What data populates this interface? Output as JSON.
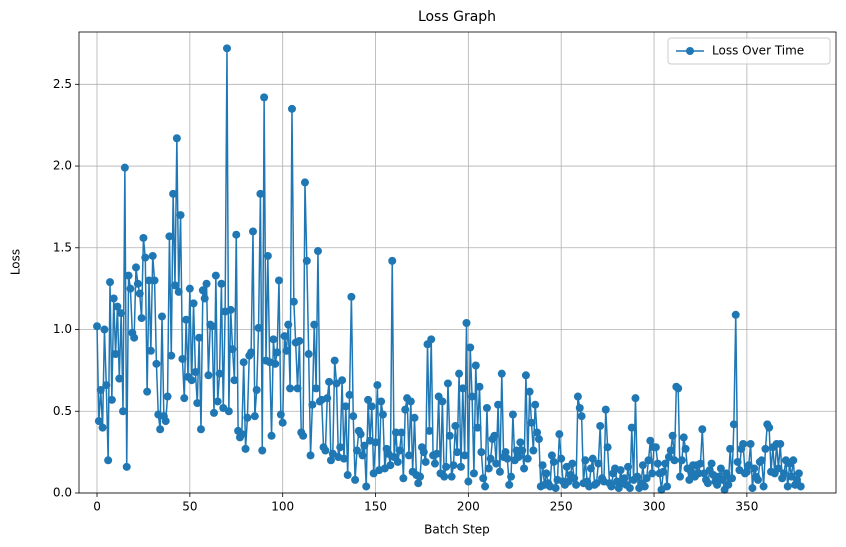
{
  "chart_data": {
    "type": "line",
    "title": "Loss Graph",
    "x_label": "Batch Step",
    "y_label": "Loss",
    "legend": "upper right",
    "grid": true,
    "xlim": [
      -9.7,
      398
    ],
    "ylim": [
      0,
      2.82
    ],
    "xticks": [
      0,
      50,
      100,
      150,
      200,
      250,
      300,
      350
    ],
    "yticks": [
      {
        "value": 0,
        "label": "0.0"
      },
      {
        "value": 0.5,
        "label": "0.5"
      },
      {
        "value": 1,
        "label": "1.0"
      },
      {
        "value": 1.5,
        "label": "1.5"
      },
      {
        "value": 2,
        "label": "2.0"
      },
      {
        "value": 2.5,
        "label": "2.5"
      }
    ],
    "x": [
      0,
      1,
      2,
      3,
      4,
      5,
      6,
      7,
      8,
      9,
      10,
      11,
      12,
      13,
      14,
      15,
      16,
      17,
      18,
      19,
      20,
      21,
      22,
      23,
      24,
      25,
      26,
      27,
      28,
      29,
      30,
      31,
      32,
      33,
      34,
      35,
      36,
      37,
      38,
      39,
      40,
      41,
      42,
      43,
      44,
      45,
      46,
      47,
      48,
      49,
      50,
      51,
      52,
      53,
      54,
      55,
      56,
      57,
      58,
      59,
      60,
      61,
      62,
      63,
      64,
      65,
      66,
      67,
      68,
      69,
      70,
      71,
      72,
      73,
      74,
      75,
      76,
      77,
      78,
      79,
      80,
      81,
      82,
      83,
      84,
      85,
      86,
      87,
      88,
      89,
      90,
      91,
      92,
      93,
      94,
      95,
      96,
      97,
      98,
      99,
      100,
      101,
      102,
      103,
      104,
      105,
      106,
      107,
      108,
      109,
      110,
      111,
      112,
      113,
      114,
      115,
      116,
      117,
      118,
      119,
      120,
      121,
      122,
      123,
      124,
      125,
      126,
      127,
      128,
      129,
      130,
      131,
      132,
      133,
      134,
      135,
      136,
      137,
      138,
      139,
      140,
      141,
      142,
      143,
      144,
      145,
      146,
      147,
      148,
      149,
      150,
      151,
      152,
      153,
      154,
      155,
      156,
      157,
      158,
      159,
      160,
      161,
      162,
      163,
      164,
      165,
      166,
      167,
      168,
      169,
      170,
      171,
      172,
      173,
      174,
      175,
      176,
      177,
      178,
      179,
      180,
      181,
      182,
      183,
      184,
      185,
      186,
      187,
      188,
      189,
      190,
      191,
      192,
      193,
      194,
      195,
      196,
      197,
      198,
      199,
      200,
      201,
      202,
      203,
      204,
      205,
      206,
      207,
      208,
      209,
      210,
      211,
      212,
      213,
      214,
      215,
      216,
      217,
      218,
      219,
      220,
      221,
      222,
      223,
      224,
      225,
      226,
      227,
      228,
      229,
      230,
      231,
      232,
      233,
      234,
      235,
      236,
      237,
      238,
      239,
      240,
      241,
      242,
      243,
      244,
      245,
      246,
      247,
      248,
      249,
      250,
      251,
      252,
      253,
      254,
      255,
      256,
      257,
      258,
      259,
      260,
      261,
      262,
      263,
      264,
      265,
      266,
      267,
      268,
      269,
      270,
      271,
      272,
      273,
      274,
      275,
      276,
      277,
      278,
      279,
      280,
      281,
      282,
      283,
      284,
      285,
      286,
      287,
      288,
      289,
      290,
      291,
      292,
      293,
      294,
      295,
      296,
      297,
      298,
      299,
      300,
      301,
      302,
      303,
      304,
      305,
      306,
      307,
      308,
      309,
      310,
      311,
      312,
      313,
      314,
      315,
      316,
      317,
      318,
      319,
      320,
      321,
      322,
      323,
      324,
      325,
      326,
      327,
      328,
      329,
      330,
      331,
      332,
      333,
      334,
      335,
      336,
      337,
      338,
      339,
      340,
      341,
      342,
      343,
      344,
      345,
      346,
      347,
      348,
      349,
      350,
      351,
      352,
      353,
      354,
      355,
      356,
      357,
      358,
      359,
      360,
      361,
      362,
      363,
      364,
      365,
      366,
      367,
      368,
      369,
      370,
      371,
      372,
      373,
      374,
      375,
      376,
      377,
      378,
      379
    ],
    "series": [
      {
        "name": "Loss Over Time",
        "color": "#1f77b4",
        "values": [
          1.02,
          0.44,
          0.63,
          0.4,
          1.0,
          0.66,
          0.2,
          1.29,
          0.57,
          1.19,
          0.85,
          1.14,
          0.7,
          1.1,
          0.5,
          1.99,
          0.16,
          1.33,
          1.25,
          0.98,
          0.95,
          1.38,
          1.28,
          1.22,
          1.07,
          1.56,
          1.44,
          0.62,
          1.3,
          0.87,
          1.45,
          1.3,
          0.79,
          0.48,
          0.39,
          1.08,
          0.47,
          0.44,
          0.59,
          1.57,
          0.84,
          1.83,
          1.27,
          2.17,
          1.23,
          1.7,
          0.82,
          0.58,
          1.06,
          0.71,
          1.25,
          0.69,
          1.16,
          0.74,
          0.55,
          0.95,
          0.39,
          1.24,
          1.19,
          1.28,
          0.72,
          1.03,
          1.02,
          0.49,
          1.33,
          0.56,
          0.73,
          1.28,
          0.52,
          1.11,
          2.72,
          0.5,
          1.12,
          0.88,
          0.69,
          1.58,
          0.38,
          0.34,
          0.36,
          0.8,
          0.27,
          0.46,
          0.84,
          0.86,
          1.6,
          0.47,
          0.63,
          1.01,
          1.83,
          0.26,
          2.42,
          0.81,
          1.45,
          0.8,
          0.35,
          0.94,
          0.79,
          0.86,
          1.3,
          0.48,
          0.43,
          0.96,
          0.87,
          1.03,
          0.64,
          2.35,
          1.17,
          0.92,
          0.64,
          0.93,
          0.37,
          0.35,
          1.9,
          1.42,
          0.85,
          0.23,
          0.54,
          1.03,
          0.64,
          1.48,
          0.56,
          0.57,
          0.28,
          0.26,
          0.58,
          0.68,
          0.2,
          0.24,
          0.81,
          0.67,
          0.22,
          0.28,
          0.69,
          0.21,
          0.53,
          0.11,
          0.6,
          1.2,
          0.47,
          0.08,
          0.26,
          0.38,
          0.36,
          0.23,
          0.29,
          0.04,
          0.57,
          0.32,
          0.53,
          0.12,
          0.31,
          0.66,
          0.14,
          0.56,
          0.48,
          0.15,
          0.27,
          0.24,
          0.17,
          1.42,
          0.22,
          0.37,
          0.19,
          0.26,
          0.37,
          0.09,
          0.51,
          0.58,
          0.23,
          0.56,
          0.13,
          0.46,
          0.11,
          0.06,
          0.1,
          0.28,
          0.25,
          0.19,
          0.91,
          0.38,
          0.94,
          0.23,
          0.18,
          0.24,
          0.59,
          0.12,
          0.56,
          0.1,
          0.16,
          0.67,
          0.35,
          0.1,
          0.17,
          0.41,
          0.25,
          0.73,
          0.16,
          0.64,
          0.23,
          1.04,
          0.07,
          0.89,
          0.59,
          0.12,
          0.78,
          0.4,
          0.65,
          0.25,
          0.09,
          0.04,
          0.52,
          0.15,
          0.21,
          0.33,
          0.35,
          0.18,
          0.54,
          0.13,
          0.73,
          0.22,
          0.25,
          0.21,
          0.05,
          0.1,
          0.48,
          0.2,
          0.26,
          0.22,
          0.31,
          0.26,
          0.15,
          0.72,
          0.21,
          0.62,
          0.43,
          0.26,
          0.54,
          0.37,
          0.33,
          0.04,
          0.17,
          0.05,
          0.12,
          0.06,
          0.04,
          0.23,
          0.19,
          0.03,
          0.08,
          0.36,
          0.21,
          0.07,
          0.05,
          0.16,
          0.07,
          0.11,
          0.18,
          0.09,
          0.05,
          0.59,
          0.52,
          0.47,
          0.06,
          0.2,
          0.07,
          0.04,
          0.15,
          0.21,
          0.05,
          0.06,
          0.18,
          0.41,
          0.09,
          0.07,
          0.51,
          0.28,
          0.06,
          0.04,
          0.12,
          0.15,
          0.07,
          0.03,
          0.14,
          0.06,
          0.09,
          0.05,
          0.16,
          0.03,
          0.4,
          0.08,
          0.58,
          0.1,
          0.03,
          0.06,
          0.17,
          0.04,
          0.09,
          0.2,
          0.32,
          0.12,
          0.28,
          0.28,
          0.18,
          0.12,
          0.02,
          0.13,
          0.18,
          0.04,
          0.22,
          0.26,
          0.35,
          0.2,
          0.65,
          0.64,
          0.1,
          0.2,
          0.34,
          0.27,
          0.15,
          0.08,
          0.13,
          0.17,
          0.1,
          0.17,
          0.12,
          0.18,
          0.39,
          0.12,
          0.08,
          0.06,
          0.14,
          0.18,
          0.11,
          0.07,
          0.05,
          0.1,
          0.15,
          0.08,
          0.02,
          0.12,
          0.05,
          0.27,
          0.09,
          0.42,
          1.09,
          0.19,
          0.14,
          0.27,
          0.3,
          0.12,
          0.13,
          0.17,
          0.3,
          0.03,
          0.15,
          0.1,
          0.08,
          0.19,
          0.2,
          0.04,
          0.27,
          0.42,
          0.4,
          0.13,
          0.28,
          0.12,
          0.3,
          0.15,
          0.3,
          0.09,
          0.12,
          0.2,
          0.04,
          0.18,
          0.1,
          0.2,
          0.05,
          0.08,
          0.12,
          0.04
        ]
      }
    ]
  }
}
